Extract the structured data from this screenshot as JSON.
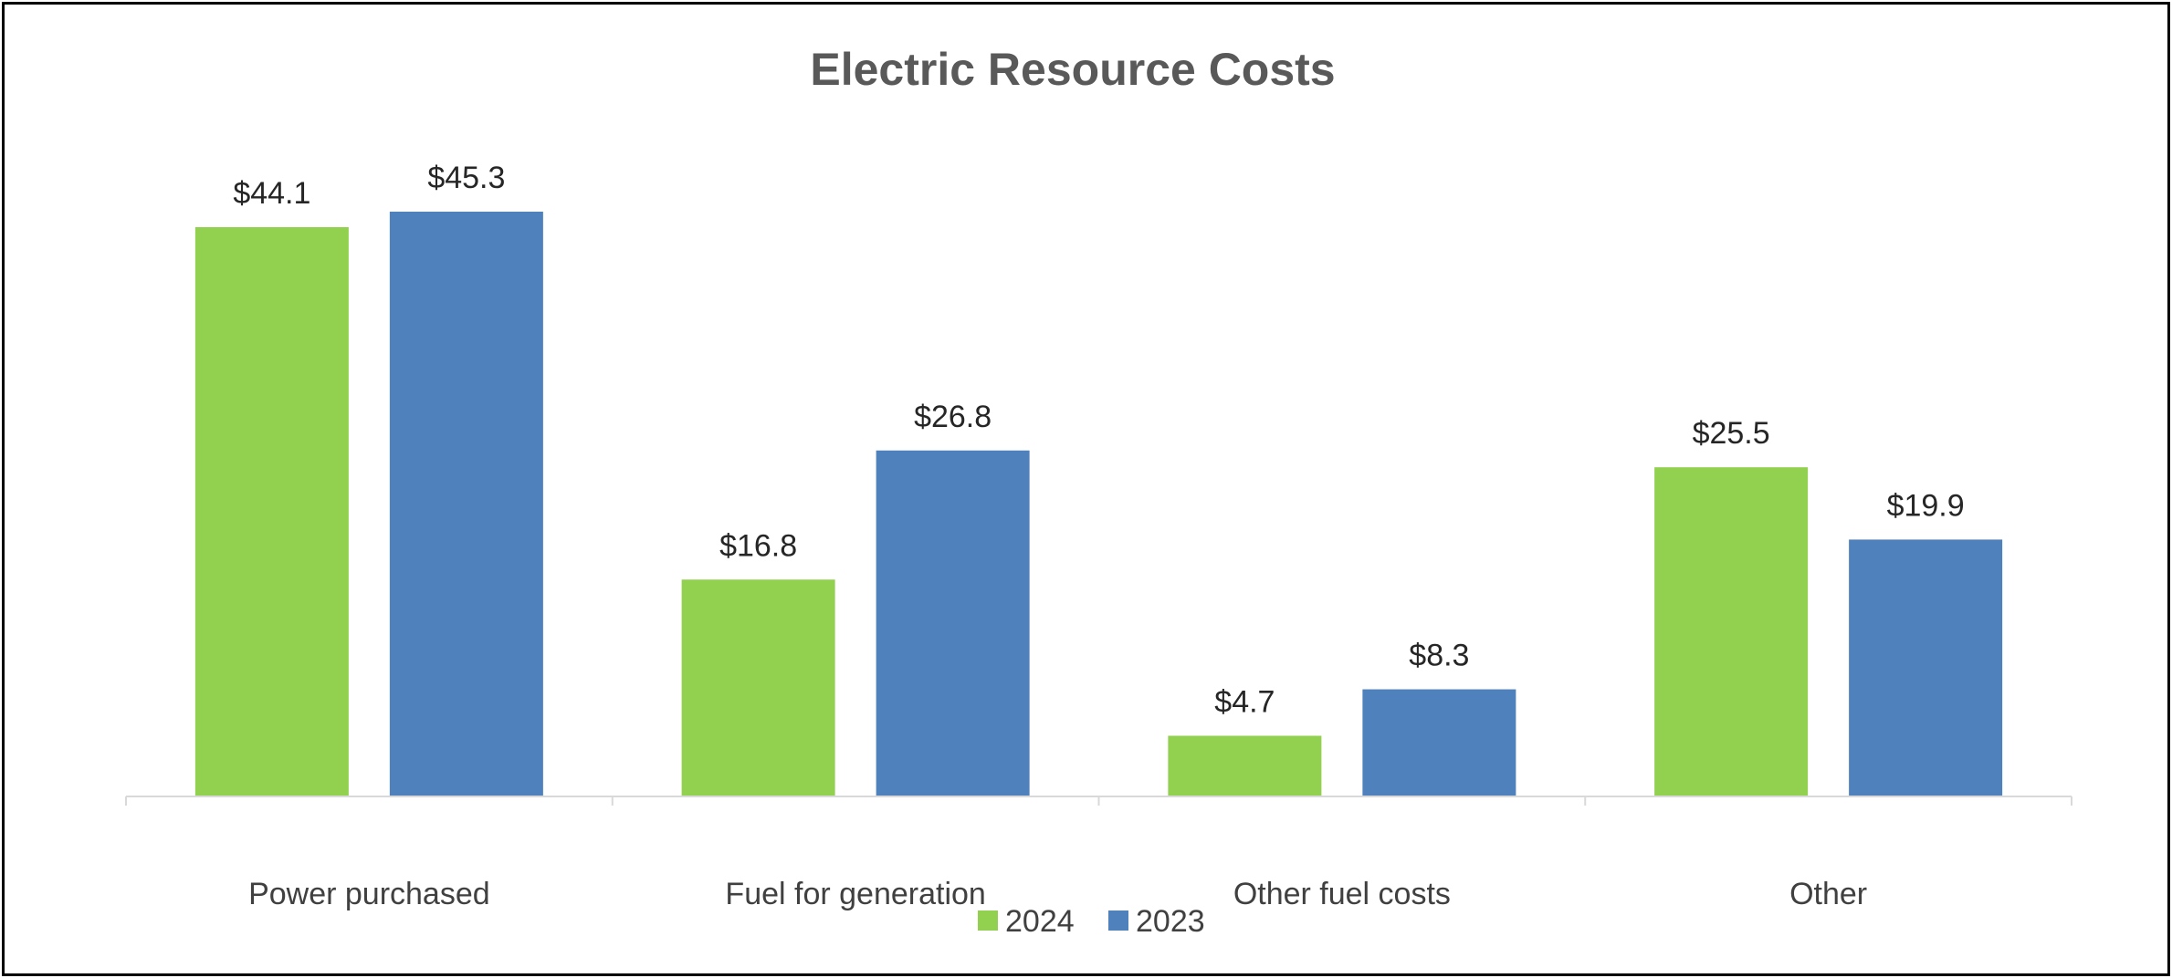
{
  "chart_data": {
    "type": "bar",
    "title": "Electric Resource Costs",
    "categories": [
      "Power purchased",
      "Fuel for generation",
      "Other fuel costs",
      "Other"
    ],
    "series": [
      {
        "name": "2024",
        "color": "#92D050",
        "values": [
          44.1,
          16.8,
          4.7,
          25.5
        ],
        "labels": [
          "$44.1",
          "$16.8",
          "$4.7",
          "$25.5"
        ]
      },
      {
        "name": "2023",
        "color": "#4F81BD",
        "values": [
          45.3,
          26.8,
          8.3,
          19.9
        ],
        "labels": [
          "$45.3",
          "$26.8",
          "$8.3",
          "$19.9"
        ]
      }
    ],
    "xlabel": "",
    "ylabel": "",
    "ylim": [
      0,
      50
    ],
    "grid": false,
    "legend": "bottom"
  }
}
